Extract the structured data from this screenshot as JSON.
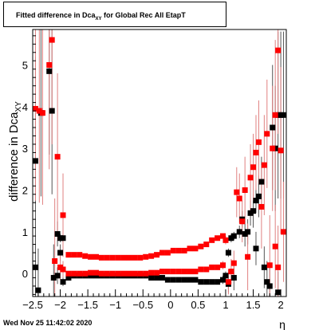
{
  "timestamp": "Wed Nov 25 11:42:02 2020",
  "chart_data": {
    "type": "scatter",
    "title_main": "Fitted difference in Dca",
    "title_sub": "XY",
    "title_rest": " for Global Rec All EtapT",
    "ylabel_main": "difference in Dca",
    "ylabel_sub": "XY",
    "xlabel": "η",
    "xlim": [
      -2.5,
      2.1
    ],
    "ylim": [
      -0.55,
      5.85
    ],
    "x_ticks": [
      -2.5,
      -2,
      -1.5,
      -1,
      -0.5,
      0,
      0.5,
      1,
      1.5,
      2
    ],
    "x_tick_labels": [
      "−2.5",
      "−2",
      "−1.5",
      "−1",
      "−0.5",
      "0",
      "0.5",
      "1",
      "1.5",
      "2"
    ],
    "y_ticks": [
      0,
      1,
      2,
      3,
      4,
      5
    ],
    "y_tick_labels": [
      "0",
      "1",
      "2",
      "3",
      "4",
      "5"
    ],
    "grid": false,
    "colors": {
      "black_series": "#000000",
      "red_series": "#ff0000",
      "error_bar": "#e08080"
    },
    "series": [
      {
        "color": "black",
        "points": [
          {
            "x": -2.45,
            "y": 0.15,
            "err": 1.2
          },
          {
            "x": -2.4,
            "y": -0.4,
            "err": 1.0
          },
          {
            "x": -2.45,
            "y": 2.7,
            "err": 2.5
          },
          {
            "x": -2.35,
            "y": 3.85,
            "err": 2.0
          },
          {
            "x": -2.2,
            "y": 4.85,
            "err": 2.0
          },
          {
            "x": -2.15,
            "y": 3.9,
            "err": 2.0
          },
          {
            "x": -2.12,
            "y": -0.1,
            "err": 0.8
          },
          {
            "x": -2.05,
            "y": 0.95,
            "err": 0.3
          },
          {
            "x": -2.0,
            "y": 0.85,
            "err": 0.1
          },
          {
            "x": -1.95,
            "y": 0.85,
            "err": 0.1
          },
          {
            "x": -2.0,
            "y": 0.5,
            "err": 0.2
          },
          {
            "x": -2.05,
            "y": -0.05,
            "err": 0.2
          },
          {
            "x": -1.95,
            "y": -0.2,
            "err": 0.1
          },
          {
            "x": -1.85,
            "y": -0.1,
            "err": 0.05
          },
          {
            "x": -1.75,
            "y": -0.05,
            "err": 0.05
          },
          {
            "x": -1.65,
            "y": -0.05,
            "err": 0.05
          },
          {
            "x": -1.55,
            "y": -0.05,
            "err": 0.05
          },
          {
            "x": -1.45,
            "y": -0.05,
            "err": 0.05
          },
          {
            "x": -1.35,
            "y": -0.05,
            "err": 0.05
          },
          {
            "x": -1.25,
            "y": -0.05,
            "err": 0.05
          },
          {
            "x": -1.15,
            "y": -0.05,
            "err": 0.05
          },
          {
            "x": -1.05,
            "y": -0.05,
            "err": 0.05
          },
          {
            "x": -0.95,
            "y": -0.05,
            "err": 0.05
          },
          {
            "x": -0.85,
            "y": -0.05,
            "err": 0.05
          },
          {
            "x": -0.75,
            "y": -0.05,
            "err": 0.05
          },
          {
            "x": -0.65,
            "y": -0.05,
            "err": 0.05
          },
          {
            "x": -0.55,
            "y": -0.05,
            "err": 0.05
          },
          {
            "x": -0.45,
            "y": -0.05,
            "err": 0.05
          },
          {
            "x": -0.35,
            "y": -0.1,
            "err": 0.05
          },
          {
            "x": -0.25,
            "y": -0.1,
            "err": 0.05
          },
          {
            "x": -0.15,
            "y": -0.1,
            "err": 0.05
          },
          {
            "x": -0.05,
            "y": -0.15,
            "err": 0.05
          },
          {
            "x": 0.05,
            "y": -0.15,
            "err": 0.05
          },
          {
            "x": 0.15,
            "y": -0.15,
            "err": 0.05
          },
          {
            "x": 0.25,
            "y": -0.15,
            "err": 0.05
          },
          {
            "x": 0.35,
            "y": -0.15,
            "err": 0.05
          },
          {
            "x": 0.45,
            "y": -0.15,
            "err": 0.05
          },
          {
            "x": 0.55,
            "y": -0.2,
            "err": 0.05
          },
          {
            "x": 0.65,
            "y": -0.2,
            "err": 0.05
          },
          {
            "x": 0.75,
            "y": -0.2,
            "err": 0.05
          },
          {
            "x": 0.85,
            "y": -0.2,
            "err": 0.05
          },
          {
            "x": 0.95,
            "y": -0.15,
            "err": 0.1
          },
          {
            "x": 1.0,
            "y": -0.05,
            "err": 0.1
          },
          {
            "x": 1.05,
            "y": -0.25,
            "err": 0.2
          },
          {
            "x": 1.05,
            "y": 0.5,
            "err": 0.1
          },
          {
            "x": 1.1,
            "y": 0.85,
            "err": 0.1
          },
          {
            "x": 1.15,
            "y": 0.9,
            "err": 0.1
          },
          {
            "x": 1.15,
            "y": -0.1,
            "err": 0.3
          },
          {
            "x": 1.25,
            "y": 1.0,
            "err": 0.15
          },
          {
            "x": 1.3,
            "y": 1.3,
            "err": 0.2
          },
          {
            "x": 1.35,
            "y": 0.95,
            "err": 0.3
          },
          {
            "x": 1.4,
            "y": 1.0,
            "err": 0.3
          },
          {
            "x": 1.45,
            "y": 1.45,
            "err": 0.3
          },
          {
            "x": 1.5,
            "y": 1.5,
            "err": 0.4
          },
          {
            "x": 1.55,
            "y": 1.75,
            "err": 0.3
          },
          {
            "x": 1.6,
            "y": 1.85,
            "err": 0.5
          },
          {
            "x": 1.65,
            "y": 2.2,
            "err": 0.6
          },
          {
            "x": 1.55,
            "y": 0.6,
            "err": 0.4
          },
          {
            "x": 1.7,
            "y": 0.15,
            "err": 0.5
          },
          {
            "x": 1.75,
            "y": -0.2,
            "err": 0.5
          },
          {
            "x": 1.8,
            "y": -0.3,
            "err": 0.5
          },
          {
            "x": 1.85,
            "y": 3.5,
            "err": 1.5
          },
          {
            "x": 1.9,
            "y": 3.0,
            "err": 1.5
          },
          {
            "x": 1.95,
            "y": 3.8,
            "err": 2.0
          },
          {
            "x": 2.0,
            "y": 3.8,
            "err": 2.0
          },
          {
            "x": 1.95,
            "y": -0.45,
            "err": 0.5
          },
          {
            "x": 2.05,
            "y": 3.8,
            "err": 2.0
          }
        ]
      },
      {
        "color": "red",
        "points": [
          {
            "x": -2.45,
            "y": 3.95,
            "err": 2.2
          },
          {
            "x": -2.38,
            "y": 3.9,
            "err": 2.2
          },
          {
            "x": -2.32,
            "y": 3.85,
            "err": 2.2
          },
          {
            "x": -2.2,
            "y": 5.0,
            "err": 2.5
          },
          {
            "x": -2.15,
            "y": 5.6,
            "err": 2.5
          },
          {
            "x": -2.1,
            "y": 0.3,
            "err": 1.5
          },
          {
            "x": -2.05,
            "y": 2.8,
            "err": 2.0
          },
          {
            "x": -1.95,
            "y": 1.4,
            "err": 1.0
          },
          {
            "x": -2.0,
            "y": 0.15,
            "err": 0.3
          },
          {
            "x": -1.95,
            "y": 0.1,
            "err": 0.2
          },
          {
            "x": -1.85,
            "y": 0.45,
            "err": 0.05
          },
          {
            "x": -1.75,
            "y": 0.45,
            "err": 0.05
          },
          {
            "x": -1.65,
            "y": 0.45,
            "err": 0.05
          },
          {
            "x": -1.55,
            "y": 0.42,
            "err": 0.05
          },
          {
            "x": -1.45,
            "y": 0.4,
            "err": 0.05
          },
          {
            "x": -1.35,
            "y": 0.4,
            "err": 0.05
          },
          {
            "x": -1.25,
            "y": 0.38,
            "err": 0.05
          },
          {
            "x": -1.15,
            "y": 0.38,
            "err": 0.05
          },
          {
            "x": -1.05,
            "y": 0.38,
            "err": 0.05
          },
          {
            "x": -0.95,
            "y": 0.38,
            "err": 0.05
          },
          {
            "x": -0.85,
            "y": 0.38,
            "err": 0.05
          },
          {
            "x": -0.75,
            "y": 0.38,
            "err": 0.05
          },
          {
            "x": -0.65,
            "y": 0.38,
            "err": 0.05
          },
          {
            "x": -0.55,
            "y": 0.38,
            "err": 0.05
          },
          {
            "x": -0.45,
            "y": 0.4,
            "err": 0.05
          },
          {
            "x": -0.35,
            "y": 0.42,
            "err": 0.05
          },
          {
            "x": -0.25,
            "y": 0.45,
            "err": 0.05
          },
          {
            "x": -0.15,
            "y": 0.5,
            "err": 0.05
          },
          {
            "x": -0.05,
            "y": 0.5,
            "err": 0.05
          },
          {
            "x": 0.05,
            "y": 0.55,
            "err": 0.05
          },
          {
            "x": 0.15,
            "y": 0.55,
            "err": 0.05
          },
          {
            "x": 0.25,
            "y": 0.55,
            "err": 0.05
          },
          {
            "x": 0.35,
            "y": 0.6,
            "err": 0.05
          },
          {
            "x": 0.45,
            "y": 0.6,
            "err": 0.05
          },
          {
            "x": 0.55,
            "y": 0.65,
            "err": 0.05
          },
          {
            "x": 0.65,
            "y": 0.7,
            "err": 0.05
          },
          {
            "x": 0.75,
            "y": 0.8,
            "err": 0.05
          },
          {
            "x": 0.85,
            "y": 0.85,
            "err": 0.05
          },
          {
            "x": 0.95,
            "y": 0.9,
            "err": 0.05
          },
          {
            "x": 1.0,
            "y": 0.8,
            "err": 0.1
          },
          {
            "x": -1.85,
            "y": 0.0,
            "err": 0.05
          },
          {
            "x": -1.75,
            "y": 0.0,
            "err": 0.05
          },
          {
            "x": -1.65,
            "y": 0.0,
            "err": 0.05
          },
          {
            "x": -1.55,
            "y": 0.0,
            "err": 0.05
          },
          {
            "x": -1.45,
            "y": 0.02,
            "err": 0.05
          },
          {
            "x": -1.35,
            "y": 0.02,
            "err": 0.05
          },
          {
            "x": -1.25,
            "y": 0.0,
            "err": 0.05
          },
          {
            "x": -1.15,
            "y": 0.0,
            "err": 0.05
          },
          {
            "x": -1.05,
            "y": 0.0,
            "err": 0.05
          },
          {
            "x": -0.95,
            "y": 0.0,
            "err": 0.05
          },
          {
            "x": -0.85,
            "y": 0.0,
            "err": 0.05
          },
          {
            "x": -0.75,
            "y": 0.0,
            "err": 0.05
          },
          {
            "x": -0.65,
            "y": 0.0,
            "err": 0.05
          },
          {
            "x": -0.55,
            "y": 0.0,
            "err": 0.05
          },
          {
            "x": -0.45,
            "y": 0.0,
            "err": 0.05
          },
          {
            "x": -0.35,
            "y": 0.02,
            "err": 0.05
          },
          {
            "x": -0.25,
            "y": 0.02,
            "err": 0.05
          },
          {
            "x": -0.15,
            "y": 0.05,
            "err": 0.05
          },
          {
            "x": -0.05,
            "y": 0.05,
            "err": 0.05
          },
          {
            "x": 0.05,
            "y": 0.05,
            "err": 0.05
          },
          {
            "x": 0.15,
            "y": 0.05,
            "err": 0.05
          },
          {
            "x": 0.25,
            "y": 0.05,
            "err": 0.05
          },
          {
            "x": 0.35,
            "y": 0.05,
            "err": 0.05
          },
          {
            "x": 0.45,
            "y": 0.05,
            "err": 0.05
          },
          {
            "x": 0.55,
            "y": 0.1,
            "err": 0.05
          },
          {
            "x": 0.65,
            "y": 0.1,
            "err": 0.05
          },
          {
            "x": 0.75,
            "y": 0.15,
            "err": 0.05
          },
          {
            "x": 0.85,
            "y": 0.15,
            "err": 0.05
          },
          {
            "x": 0.95,
            "y": 0.2,
            "err": 0.1
          },
          {
            "x": 1.05,
            "y": -0.2,
            "err": 0.3
          },
          {
            "x": 1.1,
            "y": 0.05,
            "err": 0.3
          },
          {
            "x": 1.15,
            "y": 0.25,
            "err": 0.3
          },
          {
            "x": 1.2,
            "y": 1.95,
            "err": 0.6
          },
          {
            "x": 1.25,
            "y": 1.8,
            "err": 0.6
          },
          {
            "x": 1.3,
            "y": 1.25,
            "err": 0.5
          },
          {
            "x": 1.35,
            "y": 2.0,
            "err": 0.8
          },
          {
            "x": 1.4,
            "y": 0.4,
            "err": 0.8
          },
          {
            "x": 1.45,
            "y": 2.3,
            "err": 0.8
          },
          {
            "x": 1.5,
            "y": 2.55,
            "err": 0.8
          },
          {
            "x": 1.55,
            "y": 2.9,
            "err": 0.9
          },
          {
            "x": 1.6,
            "y": 3.15,
            "err": 1.0
          },
          {
            "x": 1.65,
            "y": 1.6,
            "err": 1.0
          },
          {
            "x": 1.7,
            "y": 2.6,
            "err": 1.2
          },
          {
            "x": 1.75,
            "y": 3.35,
            "err": 1.3
          },
          {
            "x": 1.8,
            "y": 0.2,
            "err": 1.2
          },
          {
            "x": 1.85,
            "y": 3.0,
            "err": 1.5
          },
          {
            "x": 1.9,
            "y": 3.8,
            "err": 1.8
          },
          {
            "x": 1.95,
            "y": 5.35,
            "err": 2.0
          },
          {
            "x": 2.0,
            "y": 2.95,
            "err": 2.0
          },
          {
            "x": 1.9,
            "y": 0.65,
            "err": 1.0
          },
          {
            "x": 1.95,
            "y": 0.15,
            "err": 1.0
          },
          {
            "x": 2.05,
            "y": 1.0,
            "err": 1.2
          }
        ]
      }
    ]
  }
}
